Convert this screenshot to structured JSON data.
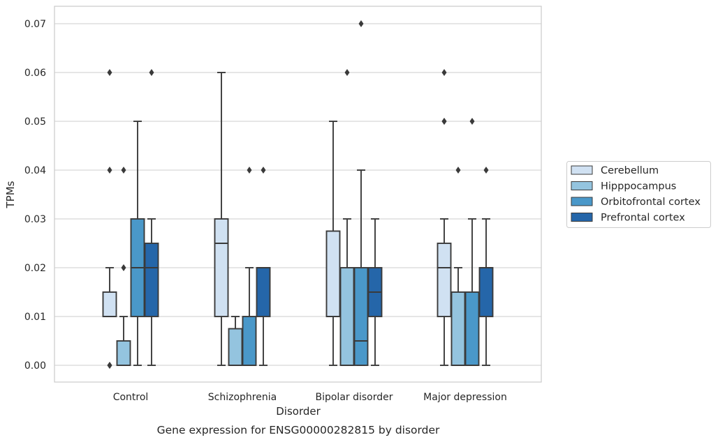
{
  "chart_data": {
    "type": "box",
    "title": "",
    "caption": "Gene expression for ENSG00000282815 by disorder",
    "xlabel": "Disorder",
    "ylabel": "TPMs",
    "ylim": [
      -0.0035,
      0.0735
    ],
    "yticks": [
      "0.00",
      "0.01",
      "0.02",
      "0.03",
      "0.04",
      "0.05",
      "0.06",
      "0.07"
    ],
    "categories": [
      "Control",
      "Schizophrenia",
      "Bipolar disorder",
      "Major depression"
    ],
    "grid": "horizontal",
    "legend_position": "right",
    "series": [
      {
        "name": "Cerebellum",
        "color": "#d0e1f2",
        "boxes": [
          {
            "whislo": 0.01,
            "q1": 0.01,
            "med": 0.01,
            "q3": 0.015,
            "whishi": 0.02,
            "fliers": [
              0.0,
              0.0,
              0.04,
              0.06
            ]
          },
          {
            "whislo": 0.0,
            "q1": 0.01,
            "med": 0.025,
            "q3": 0.03,
            "whishi": 0.06,
            "fliers": []
          },
          {
            "whislo": 0.0,
            "q1": 0.01,
            "med": 0.01,
            "q3": 0.0275,
            "whishi": 0.05,
            "fliers": []
          },
          {
            "whislo": 0.0,
            "q1": 0.01,
            "med": 0.02,
            "q3": 0.025,
            "whishi": 0.03,
            "fliers": [
              0.05,
              0.05,
              0.06
            ]
          }
        ]
      },
      {
        "name": "Hipppocampus",
        "color": "#94c4df",
        "boxes": [
          {
            "whislo": 0.0,
            "q1": 0.0,
            "med": 0.0,
            "q3": 0.005,
            "whishi": 0.01,
            "fliers": [
              0.02,
              0.04
            ]
          },
          {
            "whislo": 0.0,
            "q1": 0.0,
            "med": 0.0,
            "q3": 0.0075,
            "whishi": 0.01,
            "fliers": []
          },
          {
            "whislo": 0.0,
            "q1": 0.0,
            "med": 0.0,
            "q3": 0.02,
            "whishi": 0.03,
            "fliers": [
              0.06
            ]
          },
          {
            "whislo": 0.0,
            "q1": 0.0,
            "med": 0.0,
            "q3": 0.015,
            "whishi": 0.02,
            "fliers": [
              0.04
            ]
          }
        ]
      },
      {
        "name": "Orbitofrontal cortex",
        "color": "#4a98c9",
        "boxes": [
          {
            "whislo": 0.0,
            "q1": 0.01,
            "med": 0.02,
            "q3": 0.03,
            "whishi": 0.05,
            "fliers": []
          },
          {
            "whislo": 0.0,
            "q1": 0.0,
            "med": 0.0,
            "q3": 0.01,
            "whishi": 0.02,
            "fliers": [
              0.04
            ]
          },
          {
            "whislo": 0.0,
            "q1": 0.0,
            "med": 0.005,
            "q3": 0.02,
            "whishi": 0.04,
            "fliers": [
              0.07
            ]
          },
          {
            "whislo": 0.0,
            "q1": 0.0,
            "med": 0.0,
            "q3": 0.015,
            "whishi": 0.03,
            "fliers": [
              0.05
            ]
          }
        ]
      },
      {
        "name": "Prefrontal cortex",
        "color": "#2566a9",
        "boxes": [
          {
            "whislo": 0.0,
            "q1": 0.01,
            "med": 0.02,
            "q3": 0.025,
            "whishi": 0.03,
            "fliers": [
              0.06
            ]
          },
          {
            "whislo": 0.0,
            "q1": 0.01,
            "med": 0.02,
            "q3": 0.02,
            "whishi": 0.02,
            "fliers": [
              0.04
            ]
          },
          {
            "whislo": 0.0,
            "q1": 0.01,
            "med": 0.015,
            "q3": 0.02,
            "whishi": 0.03,
            "fliers": []
          },
          {
            "whislo": 0.0,
            "q1": 0.01,
            "med": 0.02,
            "q3": 0.02,
            "whishi": 0.03,
            "fliers": [
              0.04
            ]
          }
        ]
      }
    ]
  }
}
